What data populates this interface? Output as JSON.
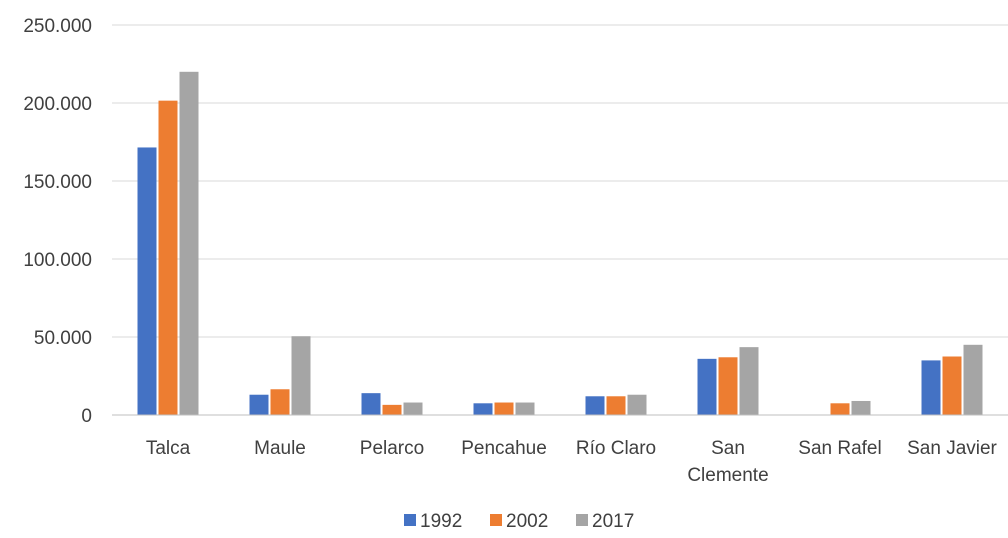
{
  "chart_data": {
    "type": "bar",
    "categories": [
      "Talca",
      "Maule",
      "Pelarco",
      "Pencahue",
      "Río Claro",
      "San Clemente",
      "San Rafel",
      "San Javier"
    ],
    "category_lines": [
      [
        "Talca"
      ],
      [
        "Maule"
      ],
      [
        "Pelarco"
      ],
      [
        "Pencahue"
      ],
      [
        "Río Claro"
      ],
      [
        "San",
        "Clemente"
      ],
      [
        "San Rafel"
      ],
      [
        "San Javier"
      ]
    ],
    "series": [
      {
        "name": "1992",
        "color": "#4472c4",
        "values": [
          171500,
          13000,
          14000,
          7500,
          12000,
          36000,
          0,
          35000
        ]
      },
      {
        "name": "2002",
        "color": "#ed7d31",
        "values": [
          201500,
          16500,
          6500,
          8000,
          12000,
          37000,
          7500,
          37500
        ]
      },
      {
        "name": "2017",
        "color": "#a5a5a5",
        "values": [
          220000,
          50500,
          8000,
          8000,
          13000,
          43500,
          9000,
          45000
        ]
      }
    ],
    "yticks": [
      "0",
      "50.000",
      "100.000",
      "150.000",
      "200.000",
      "250.000"
    ],
    "ylim": [
      0,
      250000
    ],
    "grid": true,
    "legend_position": "bottom",
    "title": "",
    "xlabel": "",
    "ylabel": ""
  }
}
